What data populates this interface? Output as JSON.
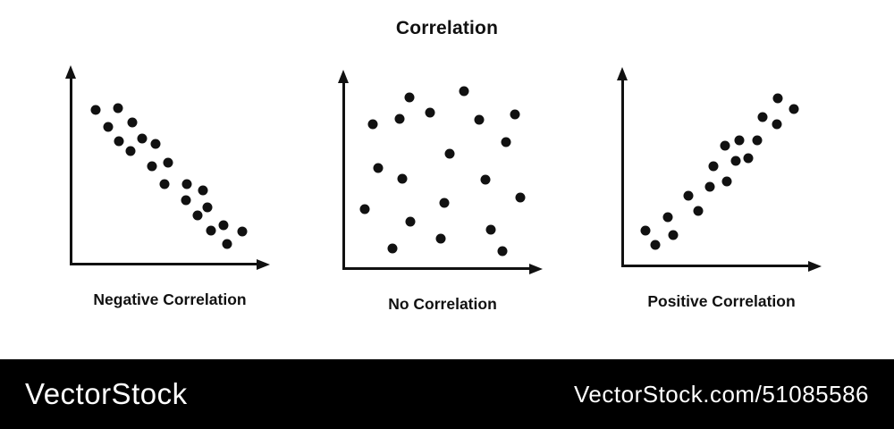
{
  "title": "Correlation",
  "colors": {
    "ink": "#111111",
    "background": "#ffffff",
    "watermark_bar": "#000000",
    "watermark_text": "#ffffff"
  },
  "watermark": {
    "logo": "VectorStock",
    "credit": "VectorStock.com/51085586"
  },
  "chart_data": [
    {
      "type": "scatter",
      "title": "Negative Correlation",
      "correlation": "negative",
      "xlabel": "",
      "ylabel": "",
      "ticks": false,
      "legend": false,
      "axis_arrows": true,
      "coords": "px inside 224x224 plot area, origin top-left",
      "points": [
        [
          29,
          50
        ],
        [
          54,
          48
        ],
        [
          43,
          69
        ],
        [
          70,
          64
        ],
        [
          55,
          85
        ],
        [
          68,
          96
        ],
        [
          81,
          82
        ],
        [
          96,
          88
        ],
        [
          92,
          113
        ],
        [
          110,
          109
        ],
        [
          106,
          133
        ],
        [
          131,
          133
        ],
        [
          149,
          140
        ],
        [
          130,
          151
        ],
        [
          143,
          168
        ],
        [
          154,
          159
        ],
        [
          158,
          185
        ],
        [
          172,
          179
        ],
        [
          193,
          186
        ],
        [
          176,
          200
        ]
      ]
    },
    {
      "type": "scatter",
      "title": "No Correlation",
      "correlation": "none",
      "xlabel": "",
      "ylabel": "",
      "ticks": false,
      "legend": false,
      "axis_arrows": true,
      "coords": "px inside 224x224 plot area, origin top-left",
      "points": [
        [
          75,
          31
        ],
        [
          136,
          24
        ],
        [
          98,
          48
        ],
        [
          64,
          55
        ],
        [
          193,
          50
        ],
        [
          153,
          56
        ],
        [
          34,
          61
        ],
        [
          183,
          81
        ],
        [
          120,
          94
        ],
        [
          40,
          110
        ],
        [
          67,
          122
        ],
        [
          160,
          123
        ],
        [
          199,
          143
        ],
        [
          114,
          149
        ],
        [
          25,
          156
        ],
        [
          76,
          170
        ],
        [
          166,
          179
        ],
        [
          110,
          189
        ],
        [
          56,
          200
        ],
        [
          179,
          203
        ]
      ]
    },
    {
      "type": "scatter",
      "title": "Positive Correlation",
      "correlation": "positive",
      "xlabel": "",
      "ylabel": "",
      "ticks": false,
      "legend": false,
      "axis_arrows": true,
      "coords": "px inside 224x224 plot area, origin top-left",
      "points": [
        [
          175,
          35
        ],
        [
          193,
          47
        ],
        [
          158,
          56
        ],
        [
          174,
          64
        ],
        [
          132,
          82
        ],
        [
          152,
          82
        ],
        [
          116,
          88
        ],
        [
          128,
          105
        ],
        [
          142,
          102
        ],
        [
          103,
          111
        ],
        [
          118,
          128
        ],
        [
          99,
          134
        ],
        [
          75,
          144
        ],
        [
          86,
          161
        ],
        [
          52,
          168
        ],
        [
          27,
          183
        ],
        [
          58,
          188
        ],
        [
          38,
          199
        ]
      ]
    }
  ]
}
